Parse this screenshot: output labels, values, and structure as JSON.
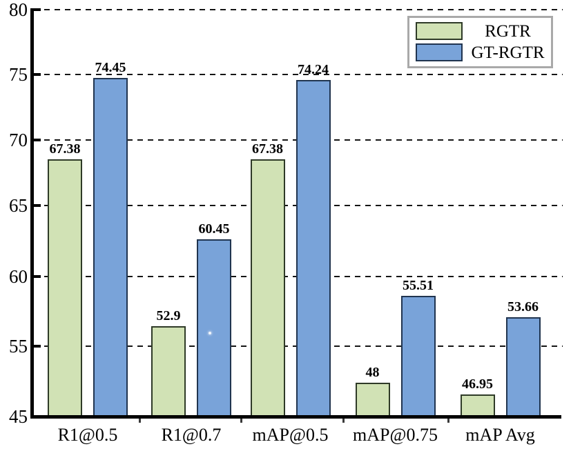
{
  "chart_data": {
    "type": "bar",
    "title": "",
    "categories": [
      "R1@0.5",
      "R1@0.7",
      "mAP@0.5",
      "mAP@0.75",
      "mAP Avg"
    ],
    "series": [
      {
        "name": "RGTR",
        "fill": "#d1e2b5",
        "border": "#2e3a27",
        "values": [
          67.38,
          52.9,
          67.38,
          48,
          46.95
        ]
      },
      {
        "name": "GT-RGTR",
        "fill": "#79a3d9",
        "border": "#20344f",
        "values": [
          74.45,
          60.45,
          74.24,
          55.51,
          53.66
        ]
      }
    ],
    "y_axis": {
      "min": 45,
      "max": 80,
      "tick_labels": [
        "80",
        "75",
        "70",
        "65",
        "60",
        "55",
        "45"
      ]
    },
    "grid": "horizontal-dashed-black",
    "legend": {
      "position": "top-right",
      "entries": [
        "RGTR",
        "GT-RGTR"
      ],
      "border_color": "#a9a9a9"
    },
    "value_labels_shown": true,
    "axis_color": "#000000"
  }
}
